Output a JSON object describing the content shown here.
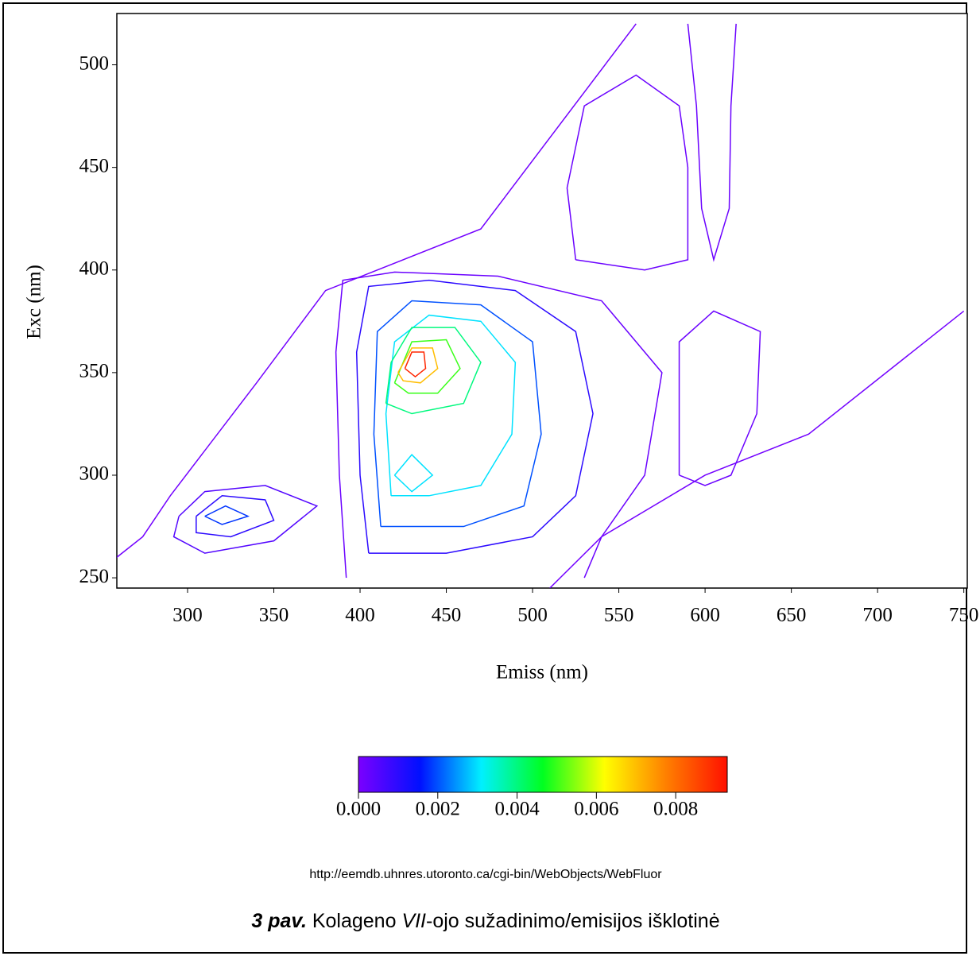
{
  "chart_data": {
    "type": "contour",
    "xlabel": "Emiss (nm)",
    "ylabel": "Exc (nm)",
    "xlim": [
      259,
      752
    ],
    "ylim": [
      245,
      525
    ],
    "xticks": [
      300,
      350,
      400,
      450,
      500,
      550,
      600,
      650,
      700,
      750
    ],
    "yticks": [
      250,
      300,
      350,
      400,
      450,
      500
    ],
    "colorbar": {
      "lim": [
        0,
        0.0093
      ],
      "ticks": [
        {
          "value": 0,
          "label": "0.000"
        },
        {
          "value": 0.002,
          "label": "0.002"
        },
        {
          "value": 0.004,
          "label": "0.004"
        },
        {
          "value": 0.006,
          "label": "0.006"
        },
        {
          "value": 0.008,
          "label": "0.008"
        }
      ],
      "colormap": [
        "#7b00ff",
        "#0010ff",
        "#00f0ff",
        "#00ff20",
        "#ffff00",
        "#ff8000",
        "#ff1000"
      ]
    },
    "series": [
      {
        "level": 0.0001,
        "x": [
          259,
          274,
          290,
          340,
          380,
          470,
          560
        ],
        "y": [
          260,
          270,
          290,
          345,
          390,
          420,
          520
        ]
      },
      {
        "level": 0.0001,
        "x": [
          510,
          540,
          600,
          660,
          750
        ],
        "y": [
          245,
          270,
          300,
          320,
          380
        ]
      },
      {
        "level": 0.0002,
        "x": [
          530,
          540,
          565,
          575,
          540,
          480,
          420,
          390,
          386,
          388,
          392
        ],
        "y": [
          250,
          270,
          300,
          350,
          385,
          397,
          399,
          395,
          360,
          300,
          250
        ]
      },
      {
        "level": 0.0002,
        "x": [
          525,
          520,
          530,
          560,
          585,
          590,
          590,
          565,
          525
        ],
        "y": [
          405,
          440,
          480,
          495,
          480,
          450,
          405,
          400,
          405
        ]
      },
      {
        "level": 0.0002,
        "x": [
          590,
          595,
          598,
          605,
          614,
          615,
          618
        ],
        "y": [
          520,
          480,
          430,
          405,
          430,
          480,
          520
        ]
      },
      {
        "level": 0.0002,
        "x": [
          585,
          585,
          605,
          632,
          630,
          615,
          600,
          585
        ],
        "y": [
          300,
          365,
          380,
          370,
          330,
          300,
          295,
          300
        ]
      },
      {
        "level": 0.0005,
        "x": [
          295,
          310,
          345,
          375,
          350,
          310,
          292,
          295
        ],
        "y": [
          280,
          292,
          295,
          285,
          268,
          262,
          270,
          280
        ]
      },
      {
        "level": 0.001,
        "x": [
          405,
          400,
          398,
          405,
          440,
          490,
          525,
          535,
          525,
          500,
          450,
          405
        ],
        "y": [
          262,
          300,
          360,
          392,
          395,
          390,
          370,
          330,
          290,
          270,
          262,
          262
        ]
      },
      {
        "level": 0.001,
        "x": [
          305,
          320,
          345,
          350,
          325,
          305,
          305
        ],
        "y": [
          280,
          290,
          288,
          278,
          270,
          272,
          280
        ]
      },
      {
        "level": 0.0018,
        "x": [
          310,
          322,
          335,
          320,
          310
        ],
        "y": [
          280,
          285,
          280,
          276,
          280
        ]
      },
      {
        "level": 0.002,
        "x": [
          412,
          408,
          410,
          430,
          470,
          500,
          505,
          495,
          460,
          412
        ],
        "y": [
          275,
          320,
          370,
          385,
          383,
          365,
          320,
          285,
          275,
          275
        ]
      },
      {
        "level": 0.003,
        "x": [
          418,
          415,
          420,
          440,
          470,
          490,
          488,
          470,
          440,
          418
        ],
        "y": [
          290,
          330,
          365,
          378,
          375,
          355,
          320,
          295,
          290,
          290
        ]
      },
      {
        "level": 0.003,
        "x": [
          420,
          430,
          442,
          430,
          420
        ],
        "y": [
          300,
          310,
          300,
          292,
          300
        ]
      },
      {
        "level": 0.004,
        "x": [
          415,
          418,
          430,
          455,
          470,
          460,
          430,
          415
        ],
        "y": [
          335,
          355,
          372,
          372,
          355,
          335,
          330,
          335
        ]
      },
      {
        "level": 0.005,
        "x": [
          420,
          430,
          450,
          458,
          445,
          428,
          420
        ],
        "y": [
          345,
          365,
          366,
          352,
          340,
          340,
          345
        ]
      },
      {
        "level": 0.007,
        "x": [
          422,
          430,
          442,
          445,
          435,
          425,
          422
        ],
        "y": [
          350,
          362,
          362,
          352,
          345,
          346,
          350
        ]
      },
      {
        "level": 0.009,
        "x": [
          426,
          430,
          437,
          438,
          432,
          426
        ],
        "y": [
          352,
          360,
          360,
          352,
          348,
          352
        ]
      }
    ]
  },
  "source": "http://eemdb.uhnres.utoronto.ca/cgi-bin/WebObjects/WebFluor",
  "caption": {
    "number": "3 pav.",
    "text1": " Kolageno ",
    "roman": "VII",
    "text2": "-ojo sužadinimo/emisijos išklotinė"
  }
}
